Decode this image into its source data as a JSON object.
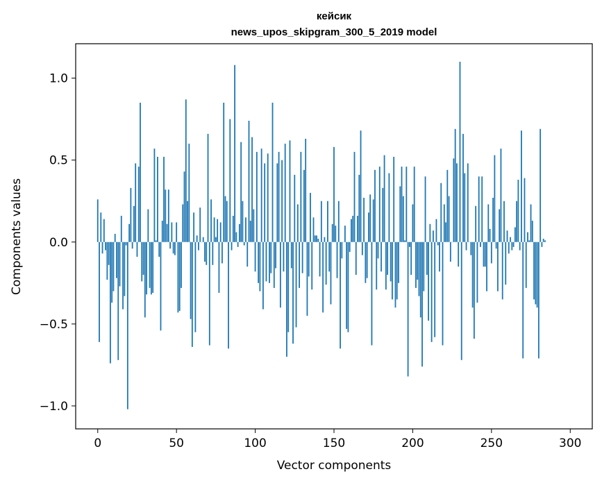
{
  "chart_data": {
    "type": "bar",
    "title_line1": "кейсик",
    "title_line2": "news_upos_skipgram_300_5_2019 model",
    "xlabel": "Vector components",
    "ylabel": "Components values",
    "xlim": [
      -14,
      314
    ],
    "ylim": [
      -1.14,
      1.21
    ],
    "x_ticks": [
      0,
      50,
      100,
      150,
      200,
      250,
      300
    ],
    "x_tick_labels": [
      "0",
      "50",
      "100",
      "150",
      "200",
      "250",
      "300"
    ],
    "y_ticks": [
      -1.0,
      -0.5,
      0.0,
      0.5,
      1.0
    ],
    "y_tick_labels": [
      "−1.0",
      "−0.5",
      "0.0",
      "0.5",
      "1.0"
    ],
    "bar_color": "#1f77b4",
    "values": [
      0.26,
      -0.61,
      0.18,
      -0.07,
      0.14,
      -0.05,
      -0.23,
      -0.14,
      -0.74,
      -0.37,
      -0.3,
      0.05,
      -0.22,
      -0.72,
      -0.27,
      0.16,
      -0.41,
      -0.33,
      -0.02,
      -1.02,
      0.11,
      0.33,
      -0.04,
      0.22,
      0.48,
      -0.09,
      0.46,
      0.85,
      -0.24,
      -0.2,
      -0.46,
      -0.32,
      0.2,
      -0.28,
      -0.32,
      -0.31,
      0.57,
      0.01,
      0.52,
      -0.09,
      -0.54,
      0.13,
      0.52,
      0.32,
      0.11,
      0.32,
      -0.04,
      0.12,
      -0.07,
      -0.08,
      0.12,
      -0.43,
      -0.42,
      -0.28,
      0.23,
      0.43,
      0.87,
      0.25,
      0.6,
      -0.47,
      -0.64,
      0.18,
      -0.55,
      0.04,
      -0.05,
      0.21,
      0.0,
      0.03,
      -0.12,
      -0.14,
      0.66,
      -0.63,
      0.26,
      -0.14,
      0.15,
      0.03,
      0.14,
      -0.31,
      0.12,
      -0.13,
      0.85,
      0.28,
      0.25,
      -0.65,
      0.75,
      -0.05,
      0.16,
      1.08,
      0.06,
      -0.03,
      0.11,
      0.61,
      0.25,
      -0.02,
      0.15,
      -0.15,
      0.74,
      0.13,
      0.64,
      0.2,
      -0.18,
      0.55,
      -0.25,
      -0.3,
      0.57,
      -0.41,
      0.48,
      -0.24,
      0.54,
      -0.25,
      -0.19,
      0.85,
      -0.28,
      -0.16,
      0.48,
      0.55,
      -0.4,
      0.5,
      -0.18,
      0.6,
      -0.7,
      -0.55,
      0.62,
      -0.16,
      -0.62,
      0.41,
      -0.52,
      0.23,
      -0.28,
      0.55,
      -0.19,
      0.44,
      0.63,
      -0.45,
      -0.21,
      0.3,
      -0.29,
      0.15,
      0.04,
      0.04,
      0.02,
      -0.21,
      0.25,
      -0.43,
      0.03,
      -0.26,
      0.25,
      -0.18,
      -0.38,
      0.11,
      0.58,
      0.1,
      -0.22,
      0.25,
      -0.65,
      -0.1,
      0.0,
      0.1,
      -0.53,
      -0.55,
      -0.06,
      0.14,
      0.16,
      0.55,
      -0.2,
      0.16,
      0.41,
      0.68,
      -0.08,
      0.27,
      -0.25,
      -0.22,
      0.18,
      0.29,
      -0.63,
      0.26,
      0.44,
      -0.29,
      -0.1,
      0.46,
      -0.18,
      0.33,
      0.53,
      -0.29,
      -0.2,
      0.42,
      -0.24,
      -0.35,
      0.52,
      -0.4,
      -0.35,
      -0.25,
      0.34,
      0.46,
      0.28,
      0.01,
      0.46,
      -0.82,
      -0.03,
      -0.2,
      0.23,
      0.46,
      -0.28,
      -0.23,
      -0.33,
      -0.46,
      -0.76,
      -0.3,
      0.4,
      -0.2,
      -0.48,
      0.11,
      -0.61,
      0.07,
      -0.58,
      0.14,
      -0.02,
      -0.18,
      0.36,
      -0.63,
      0.23,
      0.12,
      0.44,
      0.28,
      -0.12,
      0.0,
      0.51,
      0.69,
      0.48,
      -0.15,
      1.1,
      -0.72,
      0.66,
      0.42,
      -0.05,
      0.48,
      0.0,
      -0.08,
      -0.4,
      -0.59,
      0.22,
      -0.37,
      0.4,
      -0.03,
      0.4,
      -0.15,
      -0.15,
      -0.3,
      0.23,
      0.08,
      -0.13,
      0.27,
      0.53,
      -0.04,
      -0.3,
      0.2,
      0.57,
      -0.35,
      0.25,
      -0.26,
      0.07,
      -0.07,
      0.03,
      -0.05,
      -0.03,
      0.09,
      0.25,
      0.38,
      -0.05,
      0.68,
      -0.71,
      0.39,
      -0.28,
      0.06,
      0.01,
      0.23,
      0.13,
      -0.35,
      -0.38,
      -0.4,
      -0.71,
      0.69,
      -0.03,
      0.02,
      0.01
    ]
  }
}
